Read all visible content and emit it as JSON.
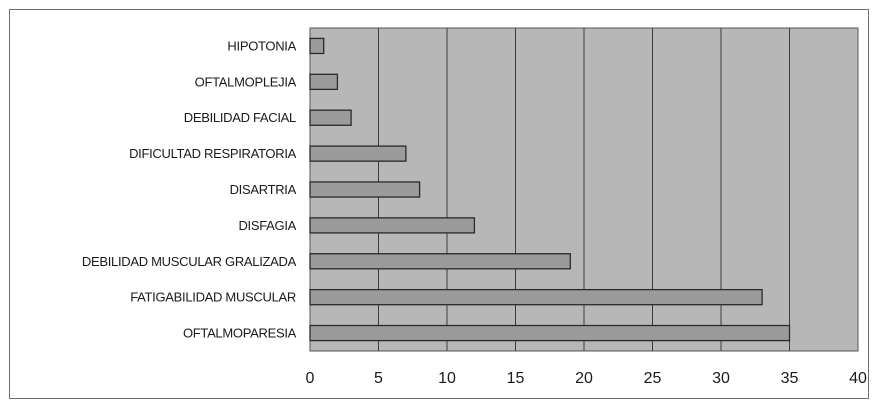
{
  "chart_data": {
    "type": "bar",
    "orientation": "horizontal",
    "categories": [
      "HIPOTONIA",
      "OFTALMOPLEJIA",
      "DEBILIDAD FACIAL",
      "DIFICULTAD RESPIRATORIA",
      "DISARTRIA",
      "DISFAGIA",
      "DEBILIDAD MUSCULAR GRALIZADA",
      "FATIGABILIDAD MUSCULAR",
      "OFTALMOPARESIA"
    ],
    "values": [
      1,
      2,
      3,
      7,
      8,
      12,
      19,
      33,
      35
    ],
    "xlim": [
      0,
      40
    ],
    "xticks": [
      "0",
      "5",
      "10",
      "15",
      "20",
      "25",
      "30",
      "35",
      "40"
    ],
    "grid": "vertical",
    "legend": "none",
    "colors": {
      "plot_background": "#b7b7b7",
      "bar_fill": "#9b9b9b",
      "bar_stroke": "#2a2a2a",
      "gridline": "#3c3c3c"
    }
  }
}
